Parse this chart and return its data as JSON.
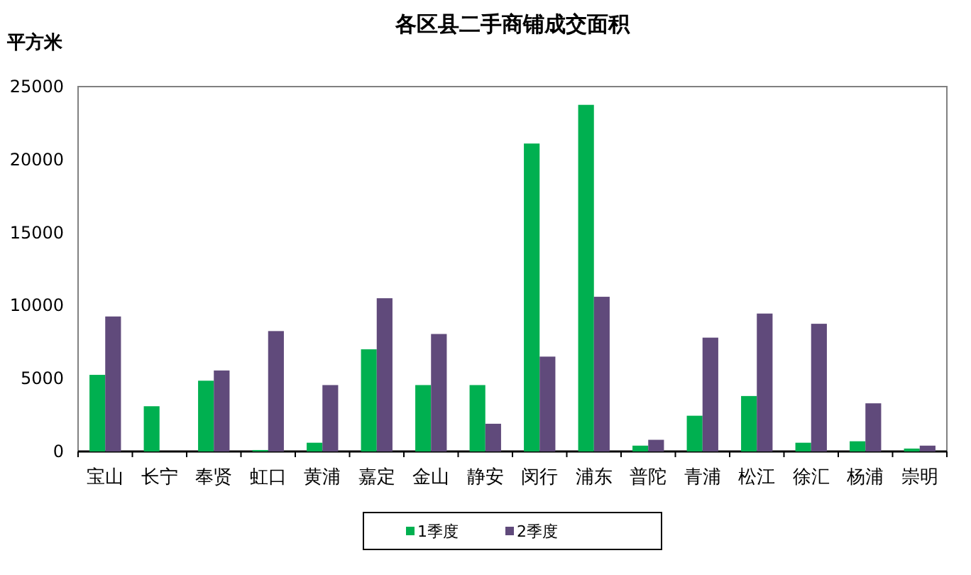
{
  "chart_data": {
    "type": "bar",
    "title": "各区县二手商铺成交面积",
    "ylabel": "平方米",
    "categories": [
      "宝山",
      "长宁",
      "奉贤",
      "虹口",
      "黄浦",
      "嘉定",
      "金山",
      "静安",
      "闵行",
      "浦东",
      "普陀",
      "青浦",
      "松江",
      "徐汇",
      "杨浦",
      "崇明"
    ],
    "series": [
      {
        "name": "1季度",
        "color": "#00b050",
        "values": [
          5250,
          3100,
          4850,
          100,
          600,
          7000,
          4550,
          4550,
          21100,
          23750,
          400,
          2450,
          3800,
          600,
          700,
          200
        ]
      },
      {
        "name": "2季度",
        "color": "#604a7b",
        "values": [
          9250,
          0,
          5550,
          8250,
          4550,
          10500,
          8050,
          1900,
          6500,
          10600,
          800,
          7800,
          9450,
          8750,
          3300,
          400
        ]
      }
    ],
    "ylim": [
      0,
      25000
    ],
    "yticks": [
      0,
      5000,
      10000,
      15000,
      20000,
      25000
    ],
    "grid": false,
    "legend": "bottom"
  }
}
